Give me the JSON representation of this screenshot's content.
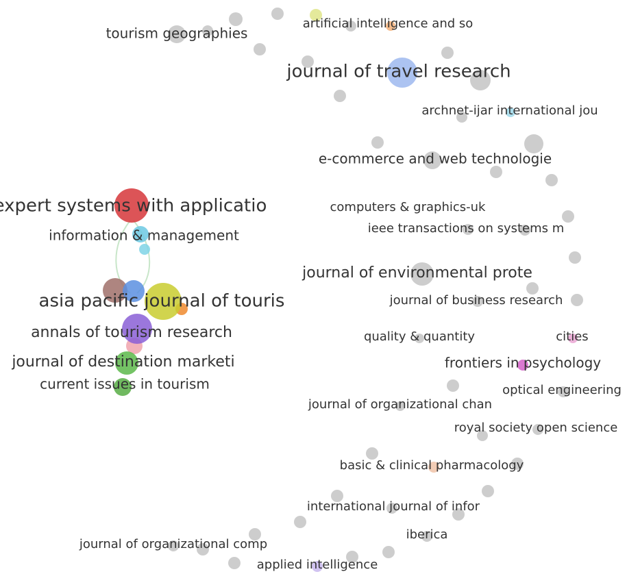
{
  "nodes": [
    {
      "label": "tourism geographies"
    },
    {
      "label": "artificial intelligence and so"
    },
    {
      "label": "journal of travel research"
    },
    {
      "label": "archnet-ijar international jou"
    },
    {
      "label": "e-commerce and web technologie"
    },
    {
      "label": "expert systems with applicatio"
    },
    {
      "label": "computers & graphics-uk"
    },
    {
      "label": "ieee transactions on systems m"
    },
    {
      "label": "information & management"
    },
    {
      "label": "journal of environmental prote"
    },
    {
      "label": "journal of business research"
    },
    {
      "label": "asia pacific journal of touris"
    },
    {
      "label": "annals of tourism research"
    },
    {
      "label": "quality & quantity"
    },
    {
      "label": "cities"
    },
    {
      "label": "journal of destination marketi"
    },
    {
      "label": "frontiers in psychology"
    },
    {
      "label": "current issues in tourism"
    },
    {
      "label": "optical engineering"
    },
    {
      "label": "journal of organizational chan"
    },
    {
      "label": "royal society open science"
    },
    {
      "label": "basic & clinical pharmacology"
    },
    {
      "label": "international journal of infor"
    },
    {
      "label": "iberica"
    },
    {
      "label": "journal of organizational comp"
    },
    {
      "label": "applied intelligence"
    }
  ]
}
